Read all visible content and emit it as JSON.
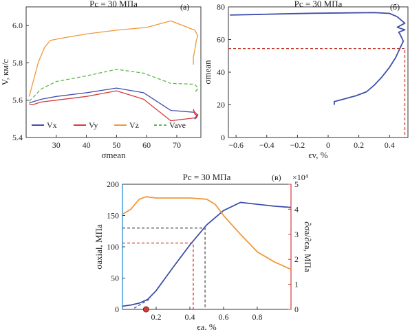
{
  "chart_data": [
    {
      "type": "line",
      "panel_label": "(а)",
      "title": "Pc = 30 МПа",
      "xlabel": "σmean",
      "ylabel": "V, км/с",
      "xlim": [
        20,
        78
      ],
      "ylim": [
        5.4,
        6.1
      ],
      "xticks": [
        "30",
        "40",
        "50",
        "60",
        "70"
      ],
      "yticks": [
        "5.4",
        "5.6",
        "5.8",
        "6.0"
      ],
      "legend_position": "bottom-left",
      "series": [
        {
          "name": "Vx",
          "color": "#3f4fa8",
          "dash": "solid",
          "x": [
            21,
            22,
            25,
            30,
            40,
            50,
            59,
            68,
            76,
            77,
            76.5,
            76,
            76.5,
            77
          ],
          "y": [
            5.585,
            5.59,
            5.605,
            5.62,
            5.64,
            5.665,
            5.64,
            5.545,
            5.535,
            5.52,
            5.505,
            5.5,
            5.515,
            5.525
          ]
        },
        {
          "name": "Vy",
          "color": "#d63b3b",
          "dash": "solid",
          "x": [
            21,
            22,
            25,
            30,
            40,
            50,
            59,
            68,
            76,
            77,
            76,
            75.5,
            76,
            77
          ],
          "y": [
            5.58,
            5.575,
            5.59,
            5.6,
            5.62,
            5.65,
            5.605,
            5.49,
            5.505,
            5.52,
            5.535,
            5.55,
            5.525,
            5.515
          ]
        },
        {
          "name": "Vz",
          "color": "#f0973a",
          "dash": "solid",
          "x": [
            21,
            22,
            24,
            26,
            28,
            31,
            40,
            50,
            60,
            68,
            72,
            76,
            77,
            76.5,
            76,
            75.5,
            75.5
          ],
          "y": [
            5.62,
            5.68,
            5.8,
            5.88,
            5.92,
            5.93,
            5.955,
            5.975,
            5.99,
            6.025,
            6.0,
            5.975,
            5.945,
            5.92,
            5.87,
            5.83,
            5.79
          ]
        },
        {
          "name": "Vave",
          "color": "#5cb84a",
          "dash": "dashed",
          "x": [
            21,
            22,
            25,
            30,
            40,
            50,
            59,
            68,
            76,
            77,
            76.5,
            76,
            77
          ],
          "y": [
            5.595,
            5.61,
            5.66,
            5.7,
            5.73,
            5.765,
            5.745,
            5.69,
            5.685,
            5.665,
            5.65,
            5.645,
            5.66
          ]
        }
      ]
    },
    {
      "type": "line",
      "panel_label": "(б)",
      "title": "Pc = 30 МПа",
      "xlabel": "ϵv, %",
      "ylabel": "σmean",
      "xlim": [
        -0.65,
        0.52
      ],
      "ylim": [
        0,
        80
      ],
      "xticks": [
        "−0.6",
        "−0.4",
        "−0.2",
        "0",
        "0.2",
        "0.4"
      ],
      "yticks": [
        "0",
        "20",
        "40",
        "60",
        "80"
      ],
      "series": [
        {
          "name": "",
          "color": "#3f4fa8",
          "x": [
            -0.64,
            -0.5,
            -0.3,
            -0.1,
            0.1,
            0.3,
            0.4,
            0.45,
            0.5,
            0.48,
            0.45,
            0.5,
            0.46,
            0.47,
            0.49,
            0.47,
            0.44,
            0.4,
            0.35,
            0.3,
            0.25,
            0.18,
            0.1,
            0.04,
            0.04
          ],
          "y": [
            75,
            75.3,
            75.7,
            76.1,
            76.3,
            76.5,
            76,
            74,
            70,
            69,
            67.5,
            66,
            64.5,
            63,
            59,
            55,
            49,
            43,
            37,
            32,
            28,
            25.5,
            23.5,
            22,
            20
          ]
        },
        {
          "name": "reference",
          "color": "#c0392b",
          "dash": "dashed",
          "x": [
            -0.65,
            0.5,
            0.5
          ],
          "y": [
            54.5,
            54.5,
            0
          ]
        }
      ]
    },
    {
      "type": "line",
      "panel_label": "(в)",
      "title": "Pc = 30 МПа",
      "xlabel": "ϵa, %",
      "ylabel": "σaxial, МПа",
      "y2label": "∂σa/∂ϵa, МПа",
      "y2multiplier": "×10⁴",
      "xlim": [
        0,
        1.0
      ],
      "ylim": [
        0,
        200
      ],
      "y2lim": [
        0,
        5
      ],
      "xticks": [
        "0.2",
        "0.4",
        "0.6",
        "0.8"
      ],
      "yticks": [
        "0",
        "50",
        "100",
        "150",
        "200"
      ],
      "y2ticks": [
        "0",
        "1",
        "2",
        "3",
        "4",
        "5"
      ],
      "series": [
        {
          "name": "σaxial",
          "color": "#3f4fa8",
          "axis": "left",
          "x": [
            0,
            0.05,
            0.1,
            0.15,
            0.2,
            0.3,
            0.4,
            0.5,
            0.6,
            0.7,
            0.8,
            0.9,
            1.0
          ],
          "y": [
            5,
            7,
            10,
            16,
            30,
            67,
            103,
            135,
            158,
            171,
            168,
            165,
            163
          ]
        },
        {
          "name": "∂σa/∂ϵa",
          "color": "#f0973a",
          "axis": "right",
          "x": [
            0,
            0.05,
            0.08,
            0.1,
            0.14,
            0.2,
            0.3,
            0.4,
            0.5,
            0.55,
            0.6,
            0.7,
            0.8,
            0.9,
            1.0
          ],
          "y": [
            3.8,
            4.0,
            4.25,
            4.4,
            4.5,
            4.45,
            4.45,
            4.45,
            4.4,
            4.2,
            3.75,
            3.0,
            2.3,
            1.9,
            1.6
          ]
        },
        {
          "name": "linear-fit",
          "color": "#3f4fa8",
          "dash": "dashed",
          "axis": "left",
          "x": [
            0.07,
            0.17
          ],
          "y": [
            2,
            18
          ]
        },
        {
          "name": "ref-1",
          "color": "#c0392b",
          "dash": "dashed",
          "axis": "left",
          "x": [
            0,
            0.42,
            0.42
          ],
          "y": [
            106,
            106,
            0
          ]
        },
        {
          "name": "ref-2",
          "color": "#555555",
          "dash": "dashed",
          "axis": "left",
          "x": [
            0,
            0.49,
            0.49
          ],
          "y": [
            130,
            130,
            0
          ]
        }
      ],
      "marker": {
        "x": 0.14,
        "y": 0,
        "color": "#d63b3b"
      }
    }
  ]
}
